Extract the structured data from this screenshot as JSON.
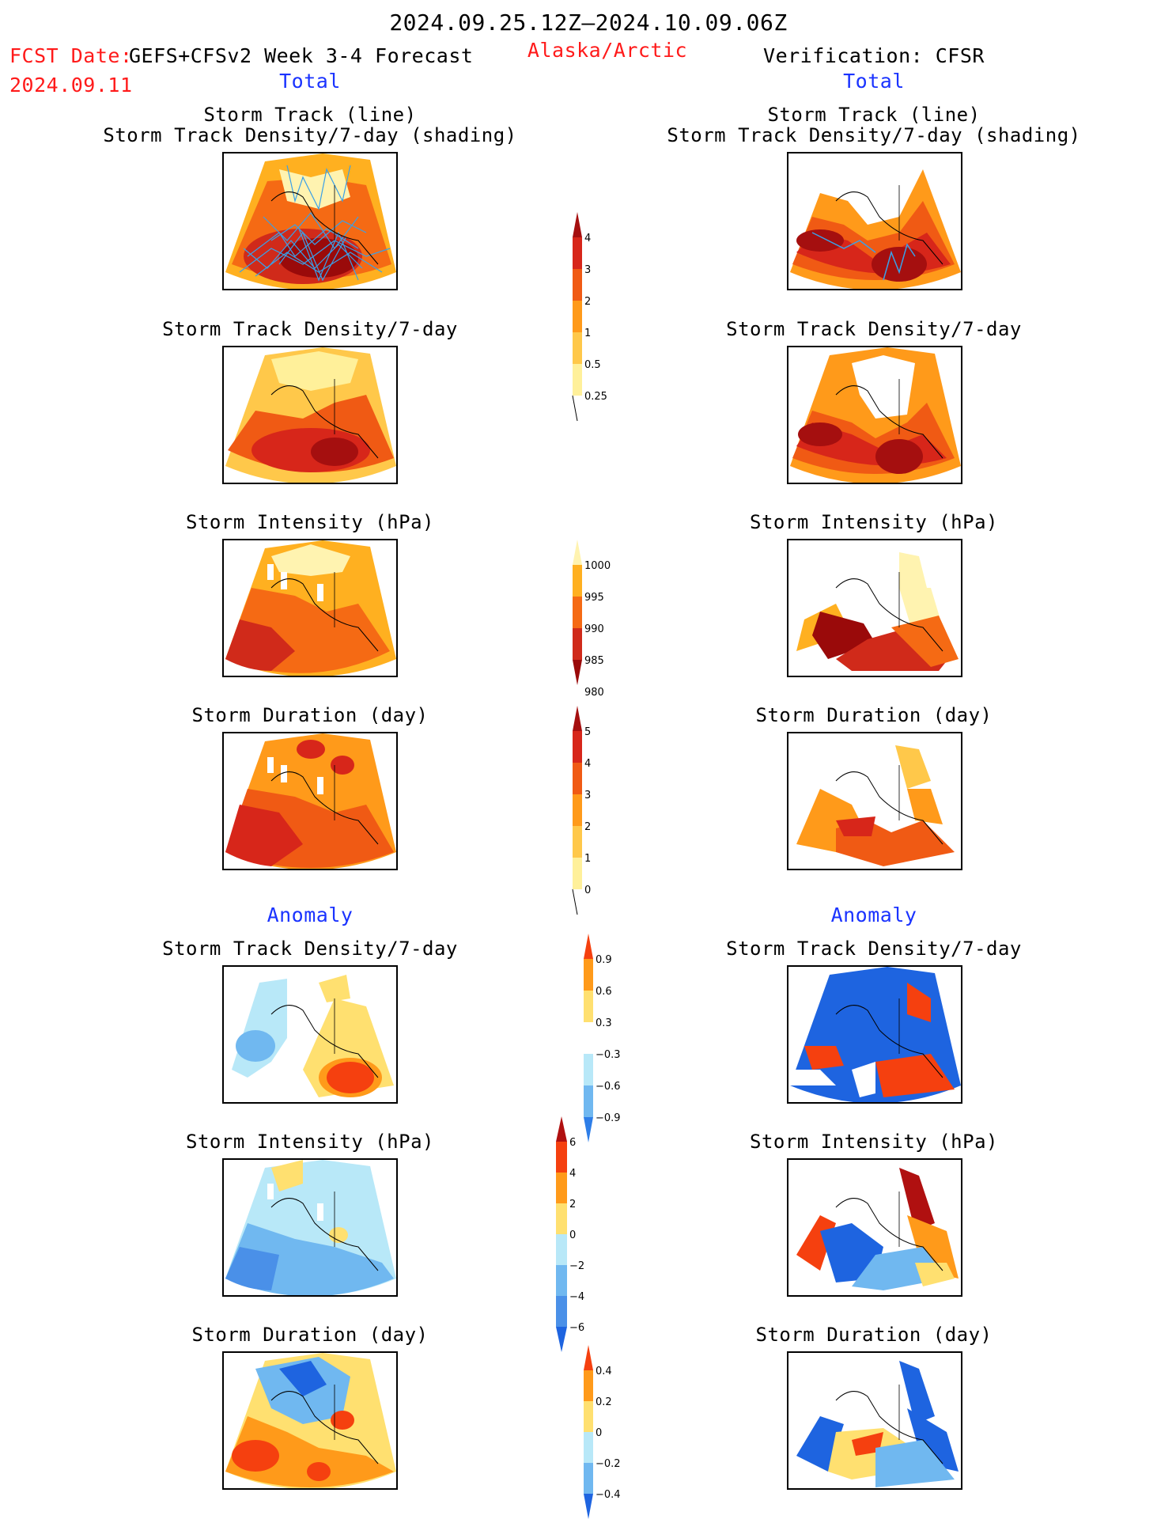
{
  "header": {
    "period": "2024.09.25.12Z–2024.10.09.06Z",
    "fcst_date_label": "FCST Date:",
    "fcst_model": "GEFS+CFSv2 Week 3-4 Forecast",
    "fcst_date": "2024.09.11",
    "region": "Alaska/Arctic",
    "verification": "Verification: CFSR",
    "total_left": "Total",
    "total_right": "Total",
    "anomaly_left": "Anomaly",
    "anomaly_right": "Anomaly"
  },
  "panels": {
    "track_line": "Storm Track (line)",
    "track_shading": "Storm Track Density/7-day (shading)",
    "density": "Storm Track Density/7-day",
    "intensity": "Storm Intensity (hPa)",
    "duration": "Storm Duration (day)"
  },
  "colorbars": {
    "density_total": {
      "labels": [
        "4",
        "3",
        "2",
        "1",
        "0.5",
        "0.25"
      ],
      "colors": [
        "#a50f0f",
        "#d7261a",
        "#f05a14",
        "#ff9a1a",
        "#ffc84a",
        "#fff09a"
      ]
    },
    "intensity_total": {
      "labels": [
        "1000",
        "995",
        "990",
        "985",
        "980"
      ],
      "colors": [
        "#fff3b0",
        "#ffb020",
        "#f56a14",
        "#d02a1a",
        "#9a0a0a"
      ]
    },
    "duration_total": {
      "labels": [
        "5",
        "4",
        "3",
        "2",
        "1",
        "0"
      ],
      "colors": [
        "#a50f0f",
        "#d7261a",
        "#f05a14",
        "#ff9a1a",
        "#ffc84a",
        "#fff09a"
      ]
    },
    "density_anom": {
      "labels": [
        "0.9",
        "0.6",
        "0.3",
        "−0.3",
        "−0.6",
        "−0.9"
      ],
      "colors": [
        "#f5400f",
        "#ff9a1a",
        "#ffe070",
        "#ffffff",
        "#b8e8f8",
        "#70b8f0",
        "#2e7ee8"
      ]
    },
    "intensity_anom": {
      "labels": [
        "6",
        "4",
        "2",
        "0",
        "−2",
        "−4",
        "−6"
      ],
      "colors": [
        "#b01010",
        "#f5400f",
        "#ff9a1a",
        "#ffe070",
        "#b8e8f8",
        "#70b8f0",
        "#4a90e8",
        "#1e64e0"
      ]
    },
    "duration_anom": {
      "labels": [
        "0.4",
        "0.2",
        "0",
        "−0.2",
        "−0.4"
      ],
      "colors": [
        "#f5400f",
        "#ff9a1a",
        "#ffe070",
        "#b8e8f8",
        "#70b8f0",
        "#1e64e0"
      ]
    }
  },
  "colors": {
    "dark_red": "#a50f0f",
    "red": "#d7261a",
    "orange_red": "#f05a14",
    "orange": "#ff9a1a",
    "light_orange": "#ffc84a",
    "yellow": "#fff09a",
    "light_blue": "#b8e8f8",
    "mid_blue": "#70b8f0",
    "blue": "#1e64e0",
    "track_line": "#3aa0e8"
  }
}
